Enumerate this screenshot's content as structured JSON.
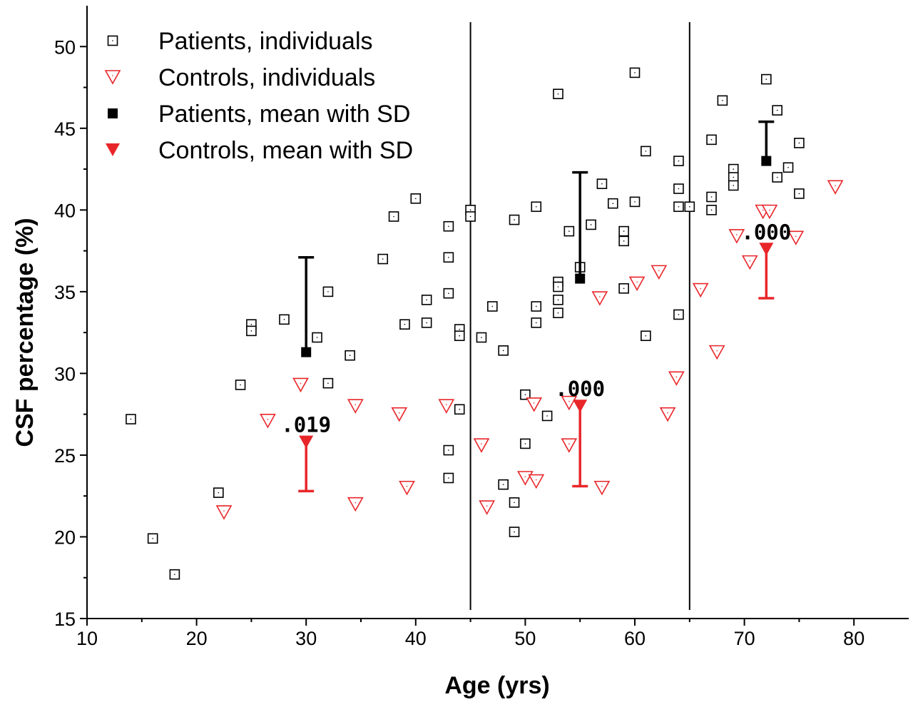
{
  "chart_data": {
    "type": "scatter",
    "title": "",
    "xlabel": "Age (yrs)",
    "ylabel": "CSF percentage (%)",
    "xlim": [
      10,
      85
    ],
    "ylim": [
      15,
      52.5
    ],
    "x_ticks": [
      10,
      20,
      30,
      40,
      50,
      60,
      70,
      80
    ],
    "y_ticks": [
      15,
      20,
      25,
      30,
      35,
      40,
      45,
      50
    ],
    "vertical_lines": [
      45,
      65
    ],
    "grid": false,
    "legend_position": "top-left",
    "series": [
      {
        "name": "Patients, individuals",
        "marker": "open-square",
        "color": "#000000",
        "points": [
          [
            14,
            27.2
          ],
          [
            16,
            19.9
          ],
          [
            18,
            17.7
          ],
          [
            22,
            22.7
          ],
          [
            24,
            29.3
          ],
          [
            25,
            33.0
          ],
          [
            25,
            32.6
          ],
          [
            28,
            33.3
          ],
          [
            31,
            32.2
          ],
          [
            32,
            35.0
          ],
          [
            32,
            29.4
          ],
          [
            34,
            31.1
          ],
          [
            37,
            37.0
          ],
          [
            38,
            39.6
          ],
          [
            39,
            33.0
          ],
          [
            40,
            40.7
          ],
          [
            41,
            34.5
          ],
          [
            41,
            33.1
          ],
          [
            43,
            39.0
          ],
          [
            43,
            37.1
          ],
          [
            43,
            34.9
          ],
          [
            43,
            25.3
          ],
          [
            43,
            23.6
          ],
          [
            44,
            32.7
          ],
          [
            44,
            32.3
          ],
          [
            44,
            27.8
          ],
          [
            45,
            40.0
          ],
          [
            45,
            39.6
          ],
          [
            46,
            32.2
          ],
          [
            47,
            34.1
          ],
          [
            48,
            31.4
          ],
          [
            48,
            23.2
          ],
          [
            49,
            39.4
          ],
          [
            49,
            22.1
          ],
          [
            49,
            20.3
          ],
          [
            50,
            28.7
          ],
          [
            50,
            25.7
          ],
          [
            51,
            40.2
          ],
          [
            51,
            34.1
          ],
          [
            51,
            33.1
          ],
          [
            52,
            27.4
          ],
          [
            53,
            47.1
          ],
          [
            53,
            35.6
          ],
          [
            53,
            35.3
          ],
          [
            53,
            34.5
          ],
          [
            53,
            33.7
          ],
          [
            54,
            38.7
          ],
          [
            55,
            36.5
          ],
          [
            56,
            39.1
          ],
          [
            57,
            41.6
          ],
          [
            58,
            40.4
          ],
          [
            59,
            38.7
          ],
          [
            59,
            38.1
          ],
          [
            59,
            35.2
          ],
          [
            60,
            48.4
          ],
          [
            60,
            40.5
          ],
          [
            61,
            43.6
          ],
          [
            61,
            32.3
          ],
          [
            64,
            43.0
          ],
          [
            64,
            41.3
          ],
          [
            64,
            40.2
          ],
          [
            64,
            33.6
          ],
          [
            65,
            40.2
          ],
          [
            67,
            44.3
          ],
          [
            67,
            40.8
          ],
          [
            67,
            40.0
          ],
          [
            68,
            46.7
          ],
          [
            69,
            42.5
          ],
          [
            69,
            42.0
          ],
          [
            69,
            41.5
          ],
          [
            72,
            48.0
          ],
          [
            73,
            46.1
          ],
          [
            73,
            42.0
          ],
          [
            74,
            42.6
          ],
          [
            75,
            44.1
          ],
          [
            75,
            41.0
          ]
        ]
      },
      {
        "name": "Controls, individuals",
        "marker": "open-triangle-down",
        "color": "#e8262a",
        "points": [
          [
            22.5,
            21.5
          ],
          [
            26.5,
            27.1
          ],
          [
            29.5,
            29.3
          ],
          [
            34.5,
            22.0
          ],
          [
            34.5,
            28.0
          ],
          [
            38.5,
            27.5
          ],
          [
            39.2,
            23.0
          ],
          [
            42.8,
            28.0
          ],
          [
            46,
            25.6
          ],
          [
            46.5,
            21.8
          ],
          [
            50,
            23.6
          ],
          [
            50.8,
            28.1
          ],
          [
            51,
            23.4
          ],
          [
            54,
            28.2
          ],
          [
            54,
            25.6
          ],
          [
            56.8,
            34.6
          ],
          [
            57,
            23.0
          ],
          [
            60.2,
            35.5
          ],
          [
            62.2,
            36.2
          ],
          [
            63,
            27.5
          ],
          [
            63.8,
            29.7
          ],
          [
            66,
            35.1
          ],
          [
            67.5,
            31.3
          ],
          [
            69.3,
            38.4
          ],
          [
            70.5,
            36.8
          ],
          [
            71.7,
            39.9
          ],
          [
            72.3,
            39.9
          ],
          [
            74.7,
            38.3
          ],
          [
            78.3,
            41.4
          ]
        ]
      },
      {
        "name": "Patients, mean with SD",
        "marker": "filled-square",
        "color": "#000000",
        "points": [
          {
            "x": 30,
            "y": 31.3,
            "upper": 37.1
          },
          {
            "x": 55,
            "y": 35.8,
            "upper": 42.3
          },
          {
            "x": 72,
            "y": 43.0,
            "upper": 45.4
          }
        ]
      },
      {
        "name": "Controls, mean with SD",
        "marker": "filled-triangle-down",
        "color": "#e8262a",
        "points": [
          {
            "x": 30,
            "y": 25.8,
            "lower": 22.8
          },
          {
            "x": 55,
            "y": 28.0,
            "lower": 23.1
          },
          {
            "x": 72,
            "y": 37.6,
            "lower": 34.6
          }
        ]
      }
    ],
    "annotations": [
      {
        "text": ".019",
        "x": 30,
        "y": 25.8
      },
      {
        "text": ".000",
        "x": 55,
        "y": 28.0
      },
      {
        "text": ".000",
        "x": 72,
        "y": 37.6
      }
    ]
  }
}
